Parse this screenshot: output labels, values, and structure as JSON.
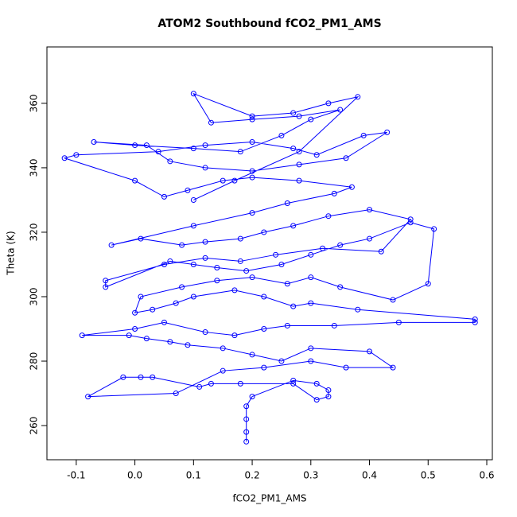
{
  "chart_data": {
    "type": "line",
    "title": "ATOM2 Southbound fCO2_PM1_AMS",
    "x_label": "fCO2_PM1_AMS",
    "y_label": "Theta (K)",
    "color": "#0000ff",
    "xlim": [
      -0.15,
      0.6095
    ],
    "ylim": [
      249.4,
      377.5
    ],
    "xticks": [
      -0.1,
      {
        "value": 0,
        "label": "0.0"
      },
      0.1,
      0.2,
      0.3,
      0.4,
      0.5,
      0.6
    ],
    "yticks": [
      260,
      280,
      300,
      320,
      340,
      360
    ],
    "x": [
      0.19,
      0.19,
      0.19,
      0.19,
      0.2,
      0.27,
      0.31,
      0.33,
      0.33,
      0.31,
      0.27,
      0.18,
      0.13,
      0.11,
      0.03,
      0.01,
      -0.02,
      -0.08,
      0.07,
      0.15,
      0.22,
      0.3,
      0.36,
      0.44,
      0.4,
      0.3,
      0.25,
      0.2,
      0.15,
      0.09,
      0.06,
      0.02,
      -0.01,
      -0.09,
      0.0,
      0.05,
      0.12,
      0.17,
      0.22,
      0.26,
      0.34,
      0.45,
      0.58,
      0.58,
      0.38,
      0.3,
      0.27,
      0.22,
      0.17,
      0.1,
      0.07,
      0.03,
      0.0,
      0.01,
      0.08,
      0.14,
      0.2,
      0.26,
      0.3,
      0.35,
      0.44,
      0.5,
      0.51,
      0.47,
      0.4,
      0.35,
      0.3,
      0.25,
      0.19,
      0.14,
      0.1,
      0.06,
      -0.05,
      -0.05,
      0.05,
      0.12,
      0.18,
      0.24,
      0.32,
      0.42,
      0.47,
      0.4,
      0.33,
      0.27,
      0.22,
      0.18,
      0.12,
      0.08,
      0.01,
      -0.04,
      0.1,
      0.2,
      0.26,
      0.34,
      0.37,
      0.28,
      0.2,
      0.15,
      0.09,
      0.05,
      0.0,
      -0.12,
      -0.1,
      0.04,
      0.12,
      0.2,
      0.27,
      0.31,
      0.39,
      0.43,
      0.36,
      0.28,
      0.2,
      0.12,
      0.06,
      0.02,
      -0.07,
      0.0,
      0.1,
      0.18,
      0.25,
      0.3,
      0.35,
      0.28,
      0.2,
      0.13,
      0.1,
      0.2,
      0.27,
      0.33,
      0.38,
      0.28,
      0.17,
      0.1
    ],
    "values": [
      255,
      258,
      262,
      266,
      269,
      274,
      273,
      271,
      269,
      268,
      273,
      273,
      273,
      272,
      275,
      275,
      275,
      269,
      270,
      277,
      278,
      280,
      278,
      278,
      283,
      284,
      280,
      282,
      284,
      285,
      286,
      287,
      288,
      288,
      290,
      292,
      289,
      288,
      290,
      291,
      291,
      292,
      292,
      293,
      296,
      298,
      297,
      300,
      302,
      300,
      298,
      296,
      295,
      300,
      303,
      305,
      306,
      304,
      306,
      303,
      299,
      304,
      321,
      323,
      318,
      316,
      313,
      310,
      308,
      309,
      310,
      311,
      303,
      305,
      310,
      312,
      311,
      313,
      315,
      314,
      324,
      327,
      325,
      322,
      320,
      318,
      317,
      316,
      318,
      316,
      322,
      326,
      329,
      332,
      334,
      336,
      337,
      336,
      333,
      331,
      336,
      343,
      344,
      345,
      347,
      348,
      346,
      344,
      350,
      351,
      343,
      341,
      339,
      340,
      342,
      347,
      348,
      347,
      346,
      345,
      350,
      355,
      358,
      356,
      355,
      354,
      363,
      356,
      357,
      360,
      362,
      345,
      336,
      330
    ]
  }
}
